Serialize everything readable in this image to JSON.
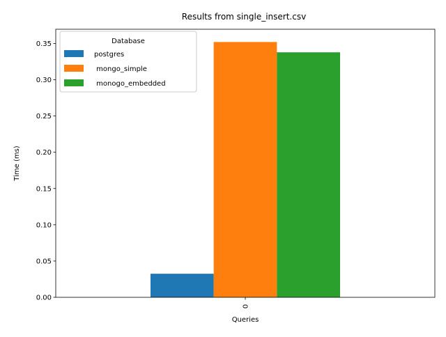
{
  "chart_data": {
    "type": "bar",
    "title": "Results from single_insert.csv",
    "xlabel": "Queries",
    "ylabel": "Time (ms)",
    "categories": [
      "0"
    ],
    "ylim": [
      0,
      0.3696
    ],
    "yticks": [
      "0.00",
      "0.05",
      "0.10",
      "0.15",
      "0.20",
      "0.25",
      "0.30",
      "0.35"
    ],
    "grid": false,
    "legend": {
      "title": "Database",
      "placement": "top-left"
    },
    "series": [
      {
        "name": "postgres",
        "values": [
          0.0325
        ],
        "color": "#1f77b4"
      },
      {
        "name": " mongo_simple",
        "values": [
          0.352
        ],
        "color": "#ff7f0e"
      },
      {
        "name": " monogo_embedded",
        "values": [
          0.3378
        ],
        "color": "#2ca02c"
      }
    ]
  }
}
